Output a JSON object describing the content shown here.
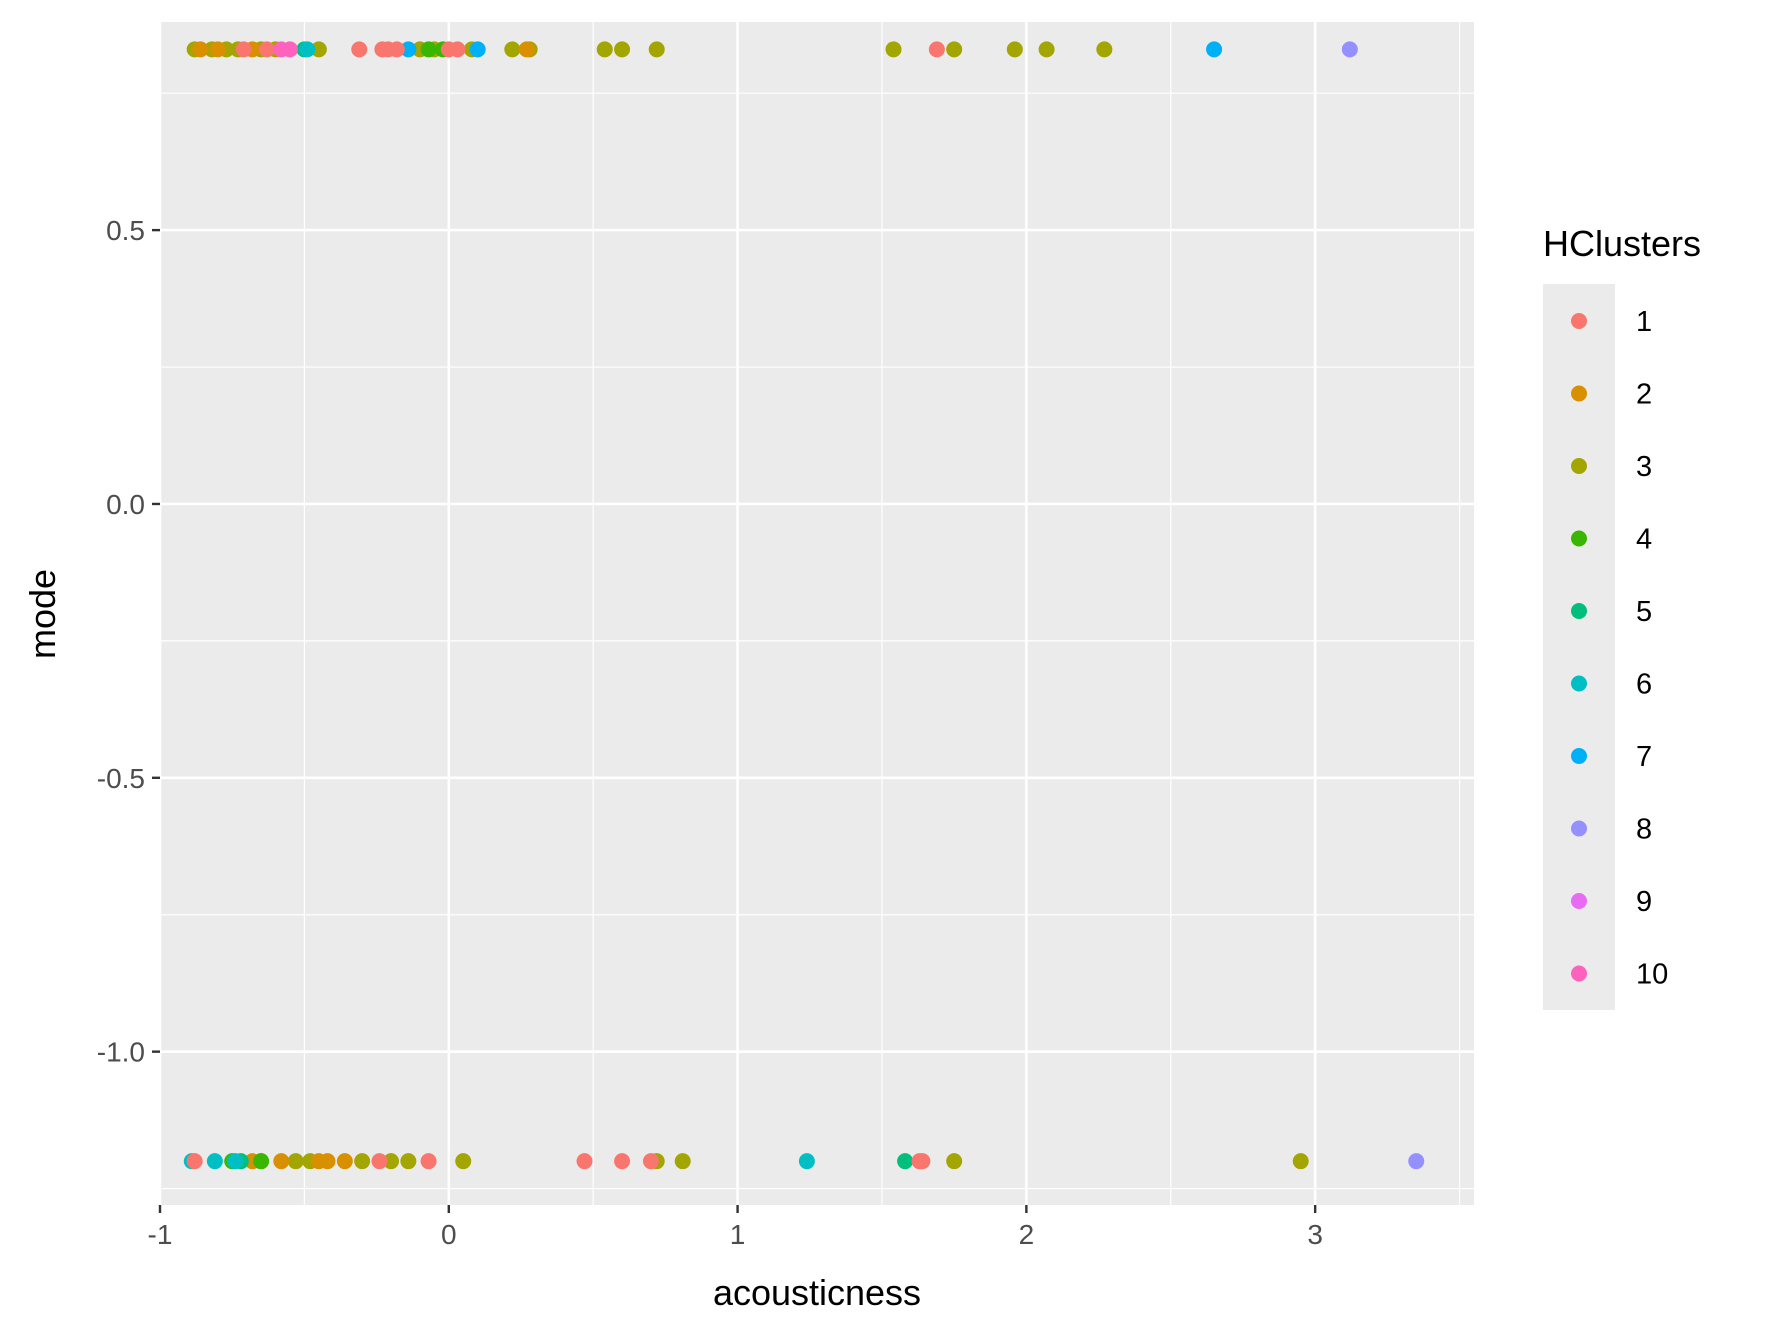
{
  "chart_data": {
    "type": "scatter",
    "xlabel": "acousticness",
    "ylabel": "mode",
    "xlim": [
      -1.0,
      3.55
    ],
    "ylim": [
      -1.28,
      0.88
    ],
    "x_ticks": [
      -1,
      0,
      1,
      2,
      3
    ],
    "x_tick_labels": [
      "-1",
      "0",
      "1",
      "2",
      "3"
    ],
    "y_ticks": [
      -1.0,
      -0.5,
      0.0,
      0.5
    ],
    "y_tick_labels": [
      "-1.0",
      "-0.5",
      "0.0",
      "0.5"
    ],
    "grid": true,
    "legend": {
      "title": "HClusters",
      "position": "right",
      "entries": [
        {
          "name": "1",
          "color": "#F8766D"
        },
        {
          "name": "2",
          "color": "#D89000"
        },
        {
          "name": "3",
          "color": "#A3A500"
        },
        {
          "name": "4",
          "color": "#39B600"
        },
        {
          "name": "5",
          "color": "#00BF7D"
        },
        {
          "name": "6",
          "color": "#00BFC4"
        },
        {
          "name": "7",
          "color": "#00B0F6"
        },
        {
          "name": "8",
          "color": "#9590FF"
        },
        {
          "name": "9",
          "color": "#E76BF3"
        },
        {
          "name": "10",
          "color": "#FF62BC"
        }
      ]
    },
    "series": [
      {
        "name": "3",
        "points": [
          [
            -0.88,
            0.83
          ],
          [
            -0.82,
            0.83
          ],
          [
            -0.77,
            0.83
          ],
          [
            -0.73,
            0.83
          ],
          [
            -0.65,
            0.83
          ],
          [
            -0.6,
            0.83
          ],
          [
            -0.45,
            0.83
          ],
          [
            -0.1,
            0.83
          ],
          [
            -0.05,
            0.83
          ],
          [
            0.08,
            0.83
          ],
          [
            0.22,
            0.83
          ],
          [
            0.28,
            0.83
          ],
          [
            0.54,
            0.83
          ],
          [
            0.6,
            0.83
          ],
          [
            0.72,
            0.83
          ],
          [
            1.54,
            0.83
          ],
          [
            1.75,
            0.83
          ],
          [
            1.96,
            0.83
          ],
          [
            2.07,
            0.83
          ],
          [
            2.27,
            0.83
          ],
          [
            -0.65,
            -1.2
          ],
          [
            -0.53,
            -1.2
          ],
          [
            -0.48,
            -1.2
          ],
          [
            -0.3,
            -1.2
          ],
          [
            -0.2,
            -1.2
          ],
          [
            -0.14,
            -1.2
          ],
          [
            0.05,
            -1.2
          ],
          [
            0.72,
            -1.2
          ],
          [
            0.81,
            -1.2
          ],
          [
            1.75,
            -1.2
          ],
          [
            2.95,
            -1.2
          ]
        ]
      },
      {
        "name": "2",
        "points": [
          [
            -0.86,
            0.83
          ],
          [
            -0.8,
            0.83
          ],
          [
            -0.68,
            0.83
          ],
          [
            0.27,
            0.83
          ],
          [
            -0.68,
            -1.2
          ],
          [
            -0.58,
            -1.2
          ],
          [
            -0.45,
            -1.2
          ],
          [
            -0.42,
            -1.2
          ],
          [
            -0.36,
            -1.2
          ]
        ]
      },
      {
        "name": "4",
        "points": [
          [
            -0.07,
            0.83
          ],
          [
            -0.02,
            0.83
          ],
          [
            -0.75,
            -1.2
          ],
          [
            -0.65,
            -1.2
          ]
        ]
      },
      {
        "name": "5",
        "points": [
          [
            -0.5,
            0.83
          ],
          [
            -0.72,
            -1.2
          ],
          [
            1.58,
            -1.2
          ]
        ]
      },
      {
        "name": "6",
        "points": [
          [
            -0.49,
            0.83
          ],
          [
            -0.89,
            -1.2
          ],
          [
            -0.81,
            -1.2
          ],
          [
            -0.74,
            -1.2
          ],
          [
            1.24,
            -1.2
          ]
        ]
      },
      {
        "name": "7",
        "points": [
          [
            -0.14,
            0.83
          ],
          [
            0.1,
            0.83
          ],
          [
            2.65,
            0.83
          ]
        ]
      },
      {
        "name": "8",
        "points": [
          [
            3.12,
            0.83
          ],
          [
            3.35,
            -1.2
          ]
        ]
      },
      {
        "name": "1",
        "points": [
          [
            -0.71,
            0.83
          ],
          [
            -0.63,
            0.83
          ],
          [
            -0.31,
            0.83
          ],
          [
            -0.23,
            0.83
          ],
          [
            -0.21,
            0.83
          ],
          [
            -0.18,
            0.83
          ],
          [
            0.0,
            0.83
          ],
          [
            0.03,
            0.83
          ],
          [
            1.69,
            0.83
          ],
          [
            -0.88,
            -1.2
          ],
          [
            -0.24,
            -1.2
          ],
          [
            -0.07,
            -1.2
          ],
          [
            0.47,
            -1.2
          ],
          [
            0.6,
            -1.2
          ],
          [
            0.7,
            -1.2
          ],
          [
            1.63,
            -1.2
          ],
          [
            1.64,
            -1.2
          ]
        ]
      },
      {
        "name": "10",
        "points": [
          [
            -0.58,
            0.83
          ],
          [
            -0.55,
            0.83
          ]
        ]
      }
    ]
  }
}
